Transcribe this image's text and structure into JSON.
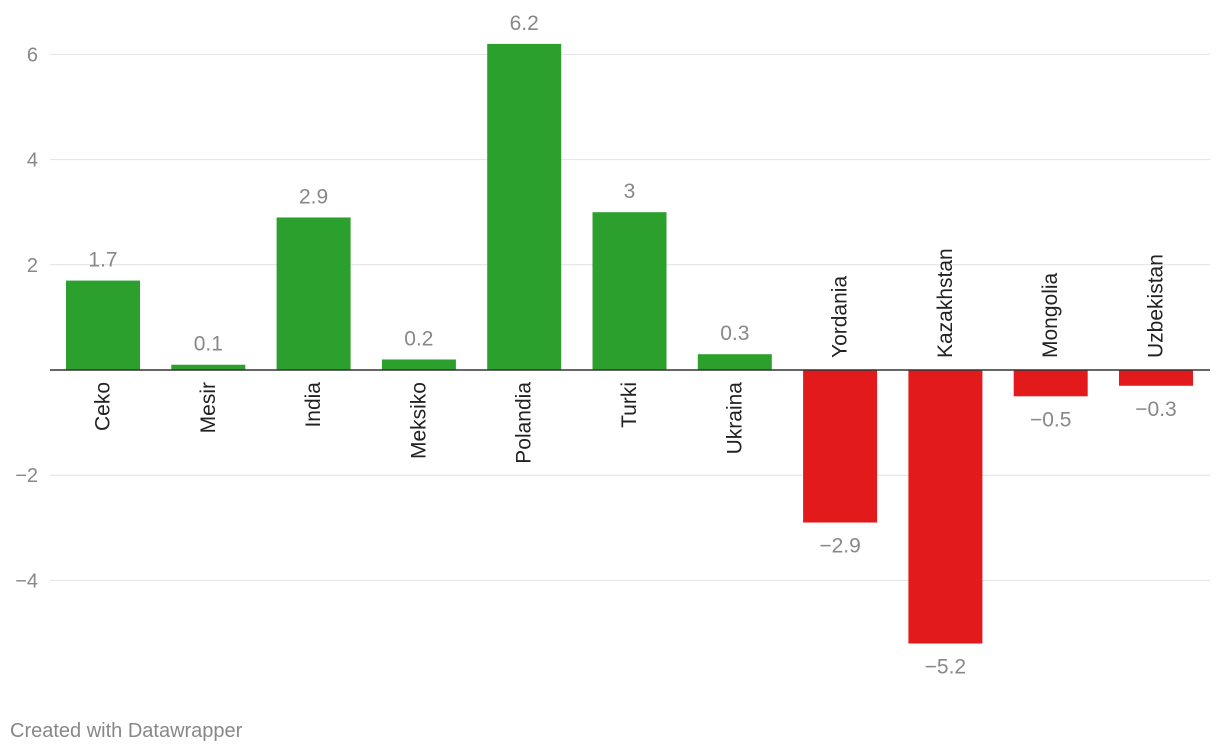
{
  "chart_data": {
    "type": "bar",
    "categories": [
      "Ceko",
      "Mesir",
      "India",
      "Meksiko",
      "Polandia",
      "Turki",
      "Ukraina",
      "Yordania",
      "Kazakhstan",
      "Mongolia",
      "Uzbekistan"
    ],
    "values": [
      1.7,
      0.1,
      2.9,
      0.2,
      6.2,
      3,
      0.3,
      -2.9,
      -5.2,
      -0.5,
      -0.3
    ],
    "value_labels": [
      "1.7",
      "0.1",
      "2.9",
      "0.2",
      "6.2",
      "3",
      "0.3",
      "−2.9",
      "−5.2",
      "−0.5",
      "−0.3"
    ],
    "ylim": [
      -6,
      6.5
    ],
    "yticks": [
      6,
      4,
      2,
      -2,
      -4
    ],
    "ytick_labels": [
      "6",
      "4",
      "2",
      "−2",
      "−4"
    ],
    "grid": true,
    "colors": {
      "positive": "#2ca02c",
      "negative": "#e31a1c",
      "grid": "#e2e2e2",
      "axis": "#333333",
      "label": "#888888",
      "category_text": "#222222"
    }
  },
  "footer": {
    "credit": "Created with Datawrapper"
  }
}
